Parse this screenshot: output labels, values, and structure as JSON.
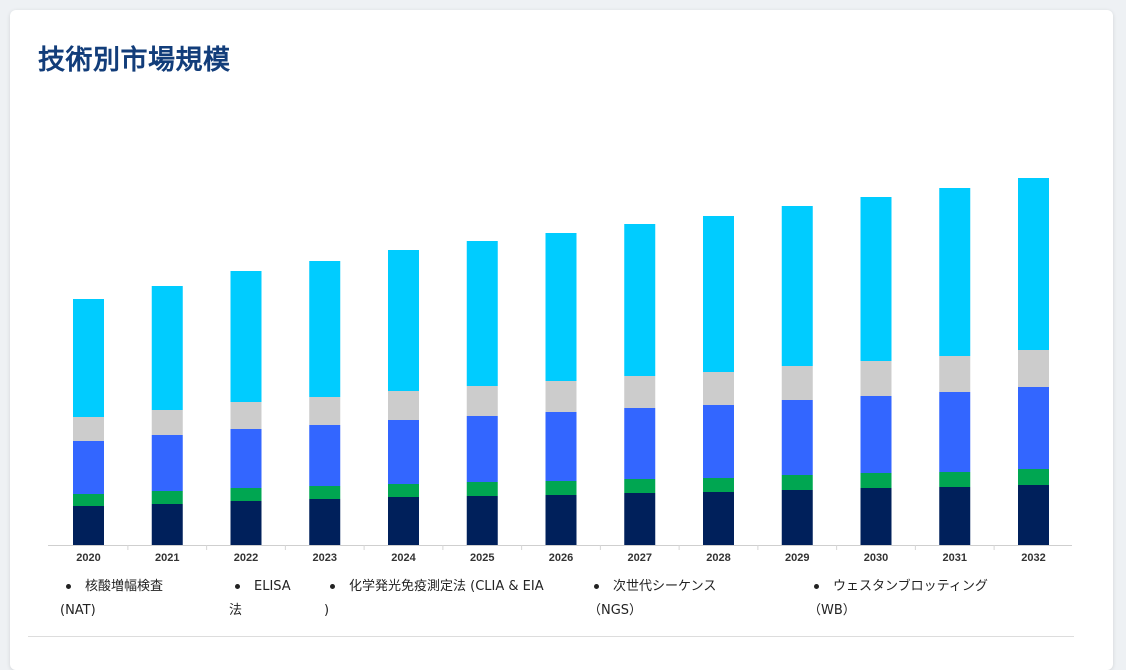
{
  "title": "技術別市場規模",
  "legend": [
    {
      "line1": "核酸増幅検査",
      "line2": "(NAT)"
    },
    {
      "line1": "ELISA",
      "line2": "法"
    },
    {
      "line1": "化学発光免疫測定法 (CLIA & EIA",
      "line2": ")"
    },
    {
      "line1": "次世代シーケンス",
      "line2": "（NGS）"
    },
    {
      "line1": "ウェスタンブロッティング",
      "line2": "（WB）"
    }
  ],
  "chart_data": {
    "type": "bar",
    "stacked": true,
    "categories": [
      "2020",
      "2021",
      "2022",
      "2023",
      "2024",
      "2025",
      "2026",
      "2027",
      "2028",
      "2029",
      "2030",
      "2031",
      "2032"
    ],
    "series": [
      {
        "name": "核酸増幅検査 (NAT)",
        "color": "#00205b",
        "values": [
          39,
          41,
          44,
          46,
          48,
          49,
          50,
          52,
          53,
          55,
          57,
          58,
          60
        ]
      },
      {
        "name": "ELISA 法",
        "color": "#00a651",
        "values": [
          12,
          13,
          13,
          13,
          13,
          14,
          14,
          14,
          14,
          15,
          15,
          15,
          16
        ]
      },
      {
        "name": "化学発光免疫測定法 (CLIA & EIA )",
        "color": "#3366ff",
        "values": [
          53,
          56,
          59,
          61,
          64,
          66,
          69,
          71,
          73,
          75,
          77,
          80,
          82
        ]
      },
      {
        "name": "次世代シーケンス（NGS）",
        "color": "#cccccc",
        "values": [
          24,
          25,
          27,
          28,
          29,
          30,
          31,
          32,
          33,
          34,
          35,
          36,
          37
        ]
      },
      {
        "name": "ウェスタンブロッティング（WB）",
        "color": "#00ccff",
        "values": [
          118,
          124,
          131,
          136,
          141,
          145,
          148,
          152,
          156,
          160,
          164,
          168,
          172
        ]
      }
    ],
    "xlabel": "",
    "ylabel": "",
    "ylim": [
      0,
      380
    ],
    "grid": false,
    "legend_position": "bottom"
  }
}
